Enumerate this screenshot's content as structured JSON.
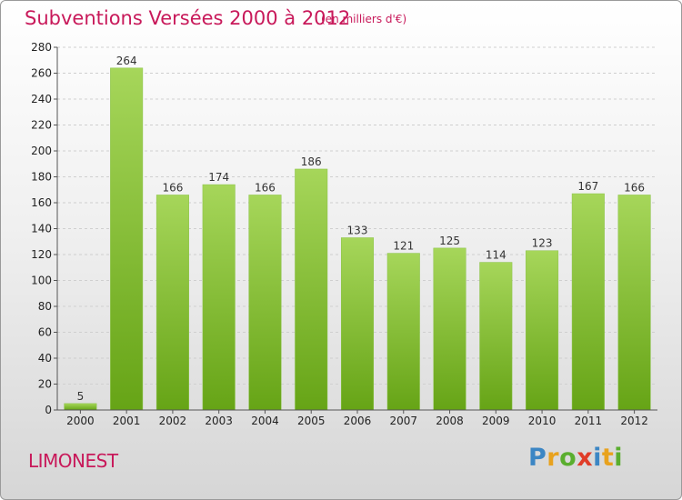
{
  "title": "Subventions Versées 2000 à 2012",
  "unit": "(en milliers d'€)",
  "commune": "LIMONEST",
  "logo": {
    "letters": [
      "P",
      "r",
      "o",
      "x",
      "i",
      "t",
      "i"
    ],
    "colors": [
      "#3c86c4",
      "#e8a21e",
      "#5aae2e",
      "#e03c28",
      "#3c86c4",
      "#e8a21e",
      "#5aae2e"
    ]
  },
  "colors": {
    "bar_top": "#a6d65a",
    "bar_bottom": "#66a416",
    "accent": "#c8195a"
  },
  "chart_data": {
    "type": "bar",
    "title": "Subventions Versées 2000 à 2012",
    "subtitle": "(en milliers d'€)",
    "categories": [
      "2000",
      "2001",
      "2002",
      "2003",
      "2004",
      "2005",
      "2006",
      "2007",
      "2008",
      "2009",
      "2010",
      "2011",
      "2012"
    ],
    "values": [
      5,
      264,
      166,
      174,
      166,
      186,
      133,
      121,
      125,
      114,
      123,
      167,
      166
    ],
    "ylim": [
      0,
      280
    ],
    "yticks": [
      0,
      20,
      40,
      60,
      80,
      100,
      120,
      140,
      160,
      180,
      200,
      220,
      240,
      260,
      280
    ],
    "grid": true,
    "xlabel": "",
    "ylabel": ""
  }
}
